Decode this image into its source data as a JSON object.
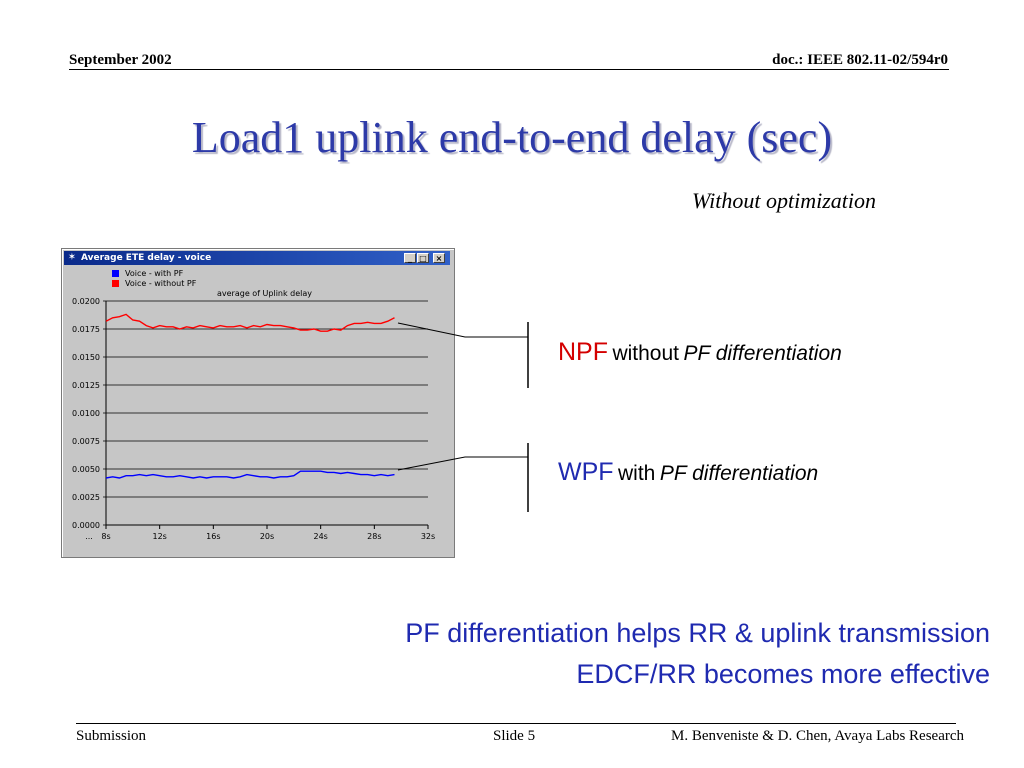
{
  "header": {
    "date": "September 2002",
    "doc_id": "doc.: IEEE 802.11-02/594r0"
  },
  "title": "Load1 uplink end-to-end delay (sec)",
  "subtitle": "Without optimization",
  "window": {
    "title": "Average ETE delay - voice",
    "icon": "app-icon",
    "buttons": [
      "minimize-icon",
      "maximize-icon",
      "close-icon"
    ],
    "button_glyphs": [
      "_",
      "□",
      "×"
    ]
  },
  "colors": {
    "title": "#2d3aa8",
    "npf": "#d40000",
    "wpf": "#1f2ab0",
    "series_with_pf": "#0000ff",
    "series_without_pf": "#ff0000",
    "plot_bg": "#c6c6c6"
  },
  "annotations": {
    "npf": {
      "abbr": "NPF",
      "word": "without",
      "phrase": "PF differentiation"
    },
    "wpf": {
      "abbr": "WPF",
      "word": "with",
      "phrase": "PF differentiation"
    }
  },
  "conclusion": {
    "line1": "PF differentiation helps RR & uplink transmission",
    "line2": "EDCF/RR becomes more effective"
  },
  "footer": {
    "left": "Submission",
    "center": "Slide 5",
    "right": "M. Benveniste & D. Chen, Avaya Labs Research"
  },
  "chart_data": {
    "type": "line",
    "title": "average of Uplink delay",
    "xlabel": "",
    "ylabel": "",
    "xlim": [
      8,
      32
    ],
    "ylim": [
      0,
      0.02
    ],
    "x_ticks": [
      8,
      12,
      16,
      20,
      24,
      28,
      32
    ],
    "x_tick_labels": [
      "8s",
      "12s",
      "16s",
      "20s",
      "24s",
      "28s",
      "32s"
    ],
    "x_axis_prefix": "...",
    "y_ticks": [
      0.0,
      0.0025,
      0.005,
      0.0075,
      0.01,
      0.0125,
      0.015,
      0.0175,
      0.02
    ],
    "y_tick_labels": [
      "0.0000",
      "0.0025",
      "0.0050",
      "0.0075",
      "0.0100",
      "0.0125",
      "0.0150",
      "0.0175",
      "0.0200"
    ],
    "grid": "horizontal",
    "legend": "top-left",
    "series": [
      {
        "name": "Voice - with PF",
        "color": "#0000ff",
        "x": [
          8,
          8.5,
          9,
          9.5,
          10,
          10.5,
          11,
          11.5,
          12,
          12.5,
          13,
          13.5,
          14,
          14.5,
          15,
          15.5,
          16,
          16.5,
          17,
          17.5,
          18,
          18.5,
          19,
          19.5,
          20,
          20.5,
          21,
          21.5,
          22,
          22.5,
          23,
          23.5,
          24,
          24.5,
          25,
          25.5,
          26,
          26.5,
          27,
          27.5,
          28,
          28.5,
          29,
          29.5
        ],
        "y": [
          0.0042,
          0.0043,
          0.0042,
          0.0044,
          0.0044,
          0.0045,
          0.0044,
          0.0045,
          0.0044,
          0.0043,
          0.0043,
          0.0044,
          0.0043,
          0.0042,
          0.0043,
          0.0042,
          0.0043,
          0.0043,
          0.0043,
          0.0042,
          0.0043,
          0.0045,
          0.0044,
          0.0043,
          0.0043,
          0.0042,
          0.0043,
          0.0043,
          0.0044,
          0.0048,
          0.0048,
          0.0048,
          0.0048,
          0.0047,
          0.0047,
          0.0046,
          0.0047,
          0.0046,
          0.0045,
          0.0045,
          0.0044,
          0.0045,
          0.0044,
          0.0045
        ]
      },
      {
        "name": "Voice - without PF",
        "color": "#ff0000",
        "x": [
          8,
          8.5,
          9,
          9.5,
          10,
          10.5,
          11,
          11.5,
          12,
          12.5,
          13,
          13.5,
          14,
          14.5,
          15,
          15.5,
          16,
          16.5,
          17,
          17.5,
          18,
          18.5,
          19,
          19.5,
          20,
          20.5,
          21,
          21.5,
          22,
          22.5,
          23,
          23.5,
          24,
          24.5,
          25,
          25.5,
          26,
          26.5,
          27,
          27.5,
          28,
          28.5,
          29,
          29.5
        ],
        "y": [
          0.0182,
          0.0185,
          0.0186,
          0.0188,
          0.0183,
          0.0182,
          0.0178,
          0.0176,
          0.0178,
          0.0177,
          0.0177,
          0.0175,
          0.0177,
          0.0176,
          0.0178,
          0.0177,
          0.0176,
          0.0178,
          0.0177,
          0.0177,
          0.0178,
          0.0176,
          0.0178,
          0.0177,
          0.0179,
          0.0178,
          0.0178,
          0.0177,
          0.0176,
          0.0174,
          0.0174,
          0.0175,
          0.0173,
          0.0173,
          0.0175,
          0.0174,
          0.0178,
          0.018,
          0.018,
          0.0181,
          0.018,
          0.018,
          0.0182,
          0.0185
        ]
      }
    ]
  }
}
